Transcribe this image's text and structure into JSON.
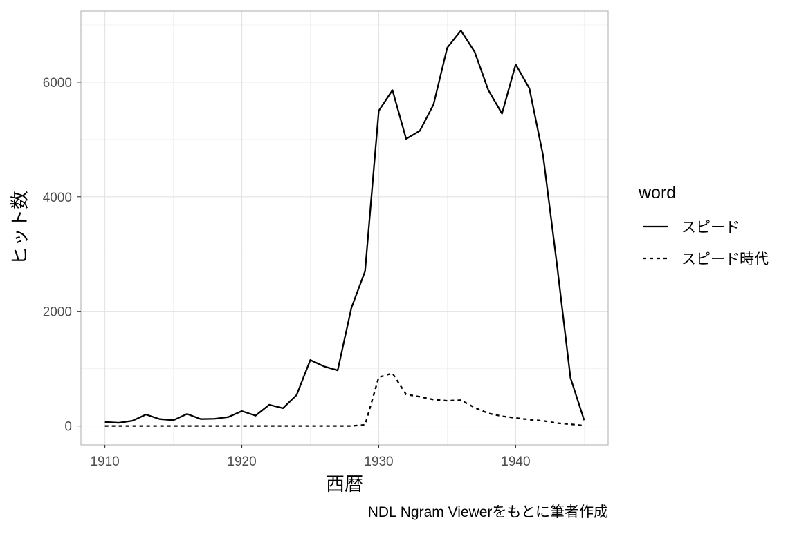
{
  "chart_data": {
    "type": "line",
    "title": "",
    "xlabel": "西暦",
    "ylabel": "ヒット数",
    "caption": "NDL Ngram Viewerをもとに筆者作成",
    "xlim": [
      1908.25,
      1946.75
    ],
    "ylim": [
      -330,
      7240
    ],
    "x_ticks": [
      1910,
      1920,
      1930,
      1940
    ],
    "y_ticks": [
      0,
      2000,
      4000,
      6000
    ],
    "grid": true,
    "legend": {
      "title": "word",
      "placement": "right"
    },
    "x": [
      1910,
      1911,
      1912,
      1913,
      1914,
      1915,
      1916,
      1917,
      1918,
      1919,
      1920,
      1921,
      1922,
      1923,
      1924,
      1925,
      1926,
      1927,
      1928,
      1929,
      1930,
      1931,
      1932,
      1933,
      1934,
      1935,
      1936,
      1937,
      1938,
      1939,
      1940,
      1941,
      1942,
      1943,
      1944,
      1945
    ],
    "series": [
      {
        "name": "スピード",
        "dash": "solid",
        "values": [
          70,
          55,
          90,
          200,
          120,
          100,
          210,
          120,
          125,
          155,
          260,
          180,
          370,
          310,
          540,
          1150,
          1040,
          970,
          2060,
          2700,
          5500,
          5860,
          5010,
          5150,
          5610,
          6600,
          6900,
          6530,
          5860,
          5450,
          6310,
          5890,
          4720,
          2840,
          840,
          100
        ]
      },
      {
        "name": "スピード時代",
        "dash": "dashed",
        "values": [
          0,
          0,
          0,
          0,
          0,
          0,
          0,
          0,
          0,
          0,
          0,
          0,
          0,
          0,
          0,
          0,
          0,
          0,
          0,
          20,
          850,
          920,
          550,
          510,
          460,
          440,
          450,
          320,
          220,
          170,
          140,
          110,
          90,
          50,
          30,
          5
        ]
      }
    ]
  }
}
